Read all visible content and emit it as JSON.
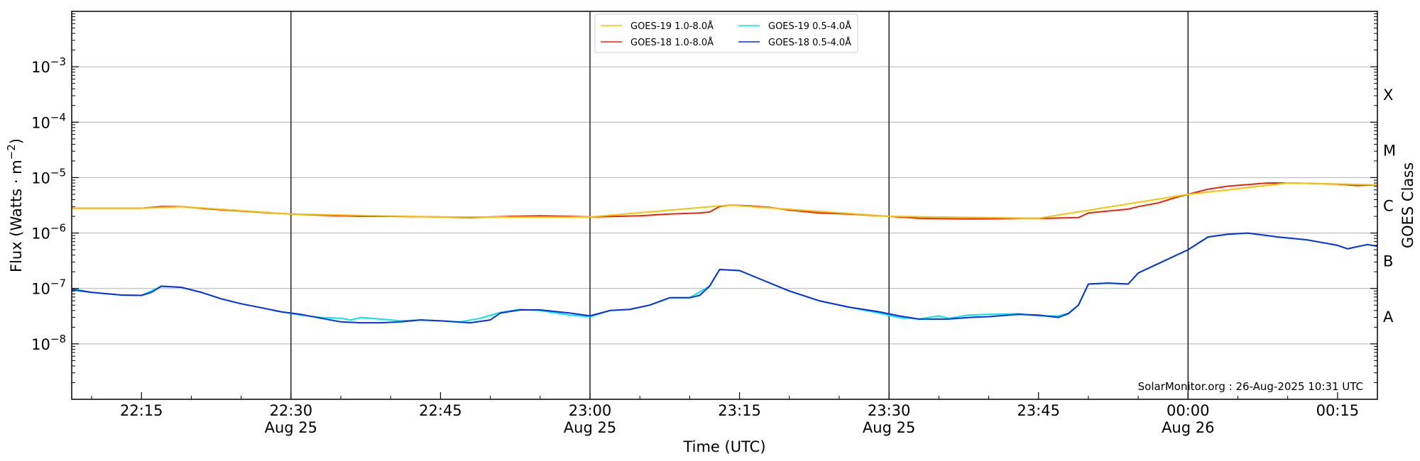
{
  "chart_data": {
    "type": "line",
    "xlabel": "Time (UTC)",
    "ylabel": "Flux (Watts · m",
    "ylabel_sup": "−2",
    "ylabel_close": ")",
    "right_label": "GOES Class",
    "credit": "SolarMonitor.org : 26-Aug-2025 10:31 UTC",
    "y_scale": "log",
    "ylim": [
      1e-09,
      0.01
    ],
    "xlim": [
      "22:08",
      "00:19"
    ],
    "grid": {
      "y": true,
      "x_vertical_lines_at": [
        "22:30",
        "23:00",
        "23:30",
        "00:00"
      ]
    },
    "legend_position": "top-center",
    "y_ticks": [
      {
        "value": 1e-08,
        "base": "10",
        "exp": "−8"
      },
      {
        "value": 1e-07,
        "base": "10",
        "exp": "−7"
      },
      {
        "value": 1e-06,
        "base": "10",
        "exp": "−6"
      },
      {
        "value": 1e-05,
        "base": "10",
        "exp": "−5"
      },
      {
        "value": 0.0001,
        "base": "10",
        "exp": "−4"
      },
      {
        "value": 0.001,
        "base": "10",
        "exp": "−3"
      }
    ],
    "x_ticks": [
      {
        "time": "22:15",
        "label": "22:15",
        "sub": ""
      },
      {
        "time": "22:30",
        "label": "22:30",
        "sub": "Aug 25"
      },
      {
        "time": "22:45",
        "label": "22:45",
        "sub": ""
      },
      {
        "time": "23:00",
        "label": "23:00",
        "sub": "Aug 25"
      },
      {
        "time": "23:15",
        "label": "23:15",
        "sub": ""
      },
      {
        "time": "23:30",
        "label": "23:30",
        "sub": "Aug 25"
      },
      {
        "time": "23:45",
        "label": "23:45",
        "sub": ""
      },
      {
        "time": "00:00",
        "label": "00:00",
        "sub": "Aug 26"
      },
      {
        "time": "00:15",
        "label": "00:15",
        "sub": ""
      }
    ],
    "goes_classes": [
      {
        "label": "A",
        "center": 3.16e-08
      },
      {
        "label": "B",
        "center": 3.16e-07
      },
      {
        "label": "C",
        "center": 3.16e-06
      },
      {
        "label": "M",
        "center": 3.16e-05
      },
      {
        "label": "X",
        "center": 0.000316
      }
    ],
    "series": [
      {
        "name": "GOES-18 1.0-8.0Å",
        "color": "#e8260c",
        "points": [
          [
            "22:08",
            2.8e-06
          ],
          [
            "22:10",
            2.8e-06
          ],
          [
            "22:13",
            2.8e-06
          ],
          [
            "22:15",
            2.8e-06
          ],
          [
            "22:17",
            3e-06
          ],
          [
            "22:19",
            3e-06
          ],
          [
            "22:22",
            2.7e-06
          ],
          [
            "22:25",
            2.5e-06
          ],
          [
            "22:28",
            2.3e-06
          ],
          [
            "22:30",
            2.2e-06
          ],
          [
            "22:33",
            2.1e-06
          ],
          [
            "22:37",
            2e-06
          ],
          [
            "22:40",
            2e-06
          ],
          [
            "22:45",
            1.95e-06
          ],
          [
            "22:48",
            1.9e-06
          ],
          [
            "22:50",
            1.95e-06
          ],
          [
            "22:52",
            2e-06
          ],
          [
            "22:55",
            2.05e-06
          ],
          [
            "22:58",
            2e-06
          ],
          [
            "23:00",
            1.95e-06
          ],
          [
            "23:03",
            2e-06
          ],
          [
            "23:05",
            2.05e-06
          ],
          [
            "23:08",
            2.2e-06
          ],
          [
            "23:11",
            2.3e-06
          ],
          [
            "23:12",
            2.4e-06
          ],
          [
            "23:13",
            3e-06
          ],
          [
            "23:14",
            3.2e-06
          ],
          [
            "23:16",
            3.1e-06
          ],
          [
            "23:18",
            2.9e-06
          ],
          [
            "23:20",
            2.6e-06
          ],
          [
            "23:23",
            2.3e-06
          ],
          [
            "23:26",
            2.2e-06
          ],
          [
            "23:30",
            2e-06
          ],
          [
            "23:33",
            1.85e-06
          ],
          [
            "23:37",
            1.8e-06
          ],
          [
            "23:40",
            1.8e-06
          ],
          [
            "23:43",
            1.85e-06
          ],
          [
            "23:46",
            1.85e-06
          ],
          [
            "23:49",
            1.9e-06
          ],
          [
            "23:50",
            2.3e-06
          ],
          [
            "23:52",
            2.5e-06
          ],
          [
            "23:54",
            2.7e-06
          ],
          [
            "23:55",
            3e-06
          ],
          [
            "23:57",
            3.5e-06
          ],
          [
            "23:59",
            4.5e-06
          ],
          [
            "00:00",
            5e-06
          ],
          [
            "00:02",
            6.2e-06
          ],
          [
            "00:04",
            7e-06
          ],
          [
            "00:06",
            7.5e-06
          ],
          [
            "00:08",
            8e-06
          ],
          [
            "00:10",
            8e-06
          ],
          [
            "00:13",
            7.8e-06
          ],
          [
            "00:15",
            7.6e-06
          ],
          [
            "00:17",
            7.2e-06
          ],
          [
            "00:19",
            7.4e-06
          ]
        ]
      },
      {
        "name": "GOES-19 1.0-8.0Å",
        "color": "#f2c500",
        "points": [
          [
            "22:08",
            2.8e-06
          ],
          [
            "22:15",
            2.8e-06
          ],
          [
            "22:19",
            3e-06
          ],
          [
            "22:30",
            2.2e-06
          ],
          [
            "22:45",
            1.95e-06
          ],
          [
            "23:00",
            1.95e-06
          ],
          [
            "23:14",
            3.2e-06
          ],
          [
            "23:30",
            2e-06
          ],
          [
            "23:45",
            1.85e-06
          ],
          [
            "00:00",
            5e-06
          ],
          [
            "00:10",
            8e-06
          ],
          [
            "00:19",
            7.4e-06
          ]
        ]
      },
      {
        "name": "GOES-19 0.5-4.0Å",
        "color": "#00e5ee",
        "points": [
          [
            "22:08",
            1e-07
          ],
          [
            "22:10",
            8.5e-08
          ],
          [
            "22:13",
            7.6e-08
          ],
          [
            "22:15",
            7.5e-08
          ],
          [
            "22:17",
            1.1e-07
          ],
          [
            "22:19",
            1.05e-07
          ],
          [
            "22:21",
            8.5e-08
          ],
          [
            "22:23",
            6.5e-08
          ],
          [
            "22:25",
            5.3e-08
          ],
          [
            "22:27",
            4.5e-08
          ],
          [
            "22:29",
            3.8e-08
          ],
          [
            "22:31",
            3.3e-08
          ],
          [
            "22:33",
            3e-08
          ],
          [
            "22:35",
            2.9e-08
          ],
          [
            "22:36",
            2.7e-08
          ],
          [
            "22:37",
            3e-08
          ],
          [
            "22:39",
            2.8e-08
          ],
          [
            "22:41",
            2.6e-08
          ],
          [
            "22:43",
            2.7e-08
          ],
          [
            "22:45",
            2.6e-08
          ],
          [
            "22:47",
            2.5e-08
          ],
          [
            "22:49",
            2.9e-08
          ],
          [
            "22:51",
            3.7e-08
          ],
          [
            "22:53",
            4.2e-08
          ],
          [
            "22:55",
            4e-08
          ],
          [
            "22:58",
            3.3e-08
          ],
          [
            "23:00",
            3.1e-08
          ],
          [
            "23:02",
            4e-08
          ],
          [
            "23:04",
            4.2e-08
          ],
          [
            "23:06",
            5e-08
          ],
          [
            "23:08",
            6.8e-08
          ],
          [
            "23:10",
            6.8e-08
          ],
          [
            "23:12",
            1.1e-07
          ],
          [
            "23:13",
            2.2e-07
          ],
          [
            "23:15",
            2.1e-07
          ],
          [
            "23:17",
            1.5e-07
          ],
          [
            "23:20",
            9e-08
          ],
          [
            "23:23",
            6e-08
          ],
          [
            "23:26",
            4.6e-08
          ],
          [
            "23:29",
            3.6e-08
          ],
          [
            "23:31",
            3e-08
          ],
          [
            "23:33",
            2.8e-08
          ],
          [
            "23:35",
            3.2e-08
          ],
          [
            "23:36",
            2.9e-08
          ],
          [
            "23:38",
            3.3e-08
          ],
          [
            "23:40",
            3.4e-08
          ],
          [
            "23:43",
            3.5e-08
          ],
          [
            "23:45",
            3.2e-08
          ],
          [
            "23:47",
            3.2e-08
          ],
          [
            "23:48",
            3.6e-08
          ],
          [
            "23:49",
            5e-08
          ],
          [
            "23:50",
            1.2e-07
          ],
          [
            "23:52",
            1.25e-07
          ],
          [
            "23:54",
            1.2e-07
          ],
          [
            "23:55",
            1.9e-07
          ],
          [
            "23:57",
            2.8e-07
          ],
          [
            "00:00",
            5e-07
          ],
          [
            "00:02",
            8.5e-07
          ],
          [
            "00:04",
            9.5e-07
          ],
          [
            "00:06",
            1e-06
          ],
          [
            "00:09",
            8.5e-07
          ],
          [
            "00:12",
            7.5e-07
          ],
          [
            "00:15",
            6e-07
          ],
          [
            "00:16",
            5.2e-07
          ],
          [
            "00:18",
            6.2e-07
          ],
          [
            "00:19",
            5.8e-07
          ]
        ]
      },
      {
        "name": "GOES-18 0.5-4.0Å",
        "color": "#0a2ee0",
        "points": [
          [
            "22:08",
            9.5e-08
          ],
          [
            "22:10",
            8.5e-08
          ],
          [
            "22:13",
            7.6e-08
          ],
          [
            "22:15",
            7.5e-08
          ],
          [
            "22:16",
            8.5e-08
          ],
          [
            "22:17",
            1.1e-07
          ],
          [
            "22:19",
            1.05e-07
          ],
          [
            "22:21",
            8.5e-08
          ],
          [
            "22:23",
            6.5e-08
          ],
          [
            "22:25",
            5.3e-08
          ],
          [
            "22:27",
            4.5e-08
          ],
          [
            "22:29",
            3.8e-08
          ],
          [
            "22:31",
            3.4e-08
          ],
          [
            "22:33",
            2.9e-08
          ],
          [
            "22:35",
            2.5e-08
          ],
          [
            "22:37",
            2.4e-08
          ],
          [
            "22:39",
            2.4e-08
          ],
          [
            "22:41",
            2.5e-08
          ],
          [
            "22:43",
            2.7e-08
          ],
          [
            "22:45",
            2.6e-08
          ],
          [
            "22:48",
            2.4e-08
          ],
          [
            "22:50",
            2.7e-08
          ],
          [
            "22:51",
            3.6e-08
          ],
          [
            "22:53",
            4.1e-08
          ],
          [
            "22:55",
            4.1e-08
          ],
          [
            "22:58",
            3.6e-08
          ],
          [
            "23:00",
            3.2e-08
          ],
          [
            "23:02",
            4e-08
          ],
          [
            "23:04",
            4.2e-08
          ],
          [
            "23:06",
            5e-08
          ],
          [
            "23:08",
            6.8e-08
          ],
          [
            "23:10",
            6.8e-08
          ],
          [
            "23:11",
            7.5e-08
          ],
          [
            "23:12",
            1.1e-07
          ],
          [
            "23:13",
            2.2e-07
          ],
          [
            "23:15",
            2.1e-07
          ],
          [
            "23:17",
            1.5e-07
          ],
          [
            "23:20",
            9e-08
          ],
          [
            "23:23",
            6e-08
          ],
          [
            "23:26",
            4.6e-08
          ],
          [
            "23:29",
            3.8e-08
          ],
          [
            "23:31",
            3.2e-08
          ],
          [
            "23:33",
            2.8e-08
          ],
          [
            "23:36",
            2.8e-08
          ],
          [
            "23:38",
            3e-08
          ],
          [
            "23:40",
            3.1e-08
          ],
          [
            "23:43",
            3.4e-08
          ],
          [
            "23:45",
            3.3e-08
          ],
          [
            "23:47",
            3e-08
          ],
          [
            "23:48",
            3.5e-08
          ],
          [
            "23:49",
            5e-08
          ],
          [
            "23:50",
            1.2e-07
          ],
          [
            "23:52",
            1.25e-07
          ],
          [
            "23:54",
            1.2e-07
          ],
          [
            "23:55",
            1.9e-07
          ],
          [
            "23:57",
            2.8e-07
          ],
          [
            "00:00",
            5e-07
          ],
          [
            "00:02",
            8.5e-07
          ],
          [
            "00:04",
            9.5e-07
          ],
          [
            "00:06",
            1e-06
          ],
          [
            "00:09",
            8.5e-07
          ],
          [
            "00:12",
            7.5e-07
          ],
          [
            "00:15",
            6e-07
          ],
          [
            "00:16",
            5.2e-07
          ],
          [
            "00:18",
            6.2e-07
          ],
          [
            "00:19",
            5.8e-07
          ]
        ]
      }
    ],
    "legend": [
      {
        "series_index": 1,
        "label": "GOES-19 1.0-8.0Å"
      },
      {
        "series_index": 0,
        "label": "GOES-18 1.0-8.0Å"
      },
      {
        "series_index": 2,
        "label": "GOES-19 0.5-4.0Å"
      },
      {
        "series_index": 3,
        "label": "GOES-18 0.5-4.0Å"
      }
    ]
  }
}
